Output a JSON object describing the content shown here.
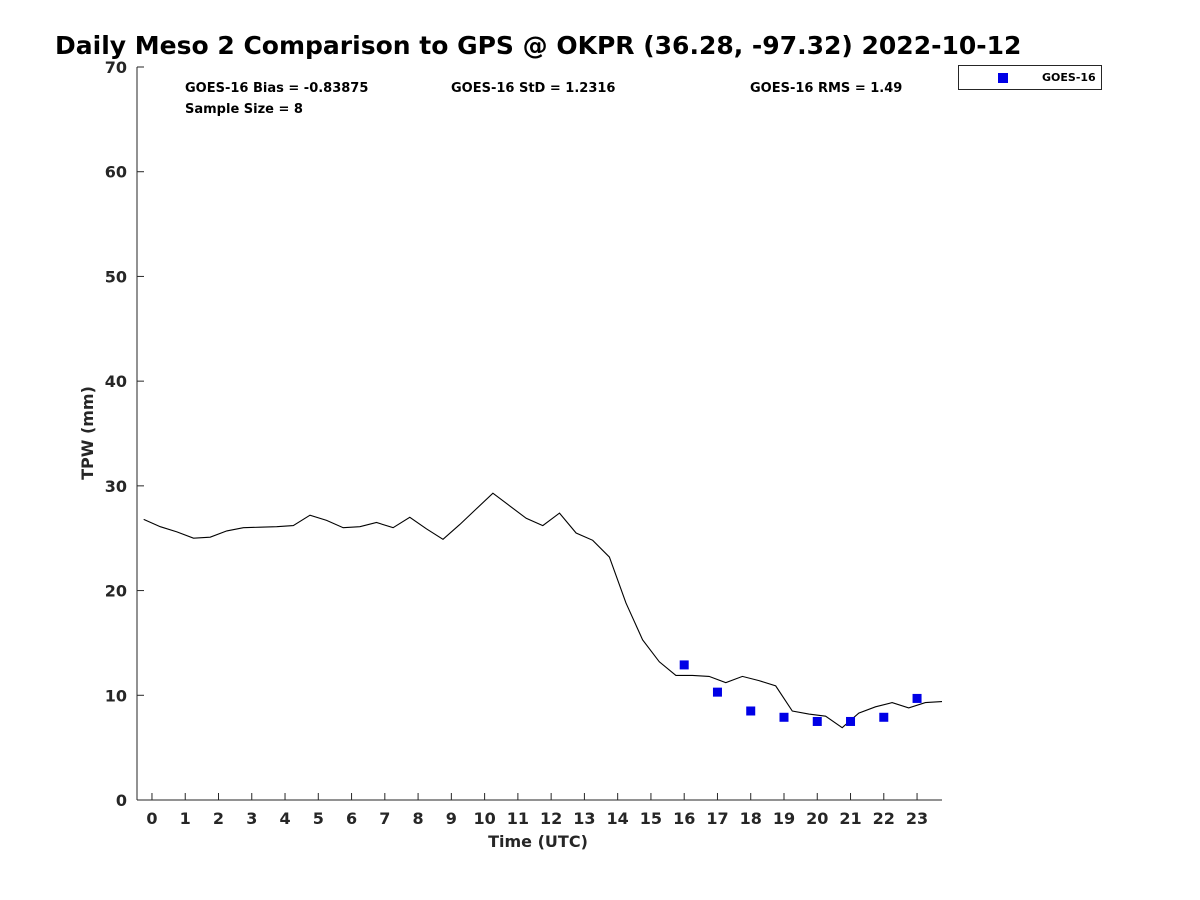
{
  "chart_data": {
    "type": "line",
    "title": "Daily Meso 2 Comparison to GPS @ OKPR (36.28, -97.32) 2022-10-12",
    "xlabel": "Time (UTC)",
    "ylabel": "TPW (mm)",
    "xlim": [
      -0.45,
      23.75
    ],
    "ylim": [
      0,
      70
    ],
    "x_ticks": [
      0,
      1,
      2,
      3,
      4,
      5,
      6,
      7,
      8,
      9,
      10,
      11,
      12,
      13,
      14,
      15,
      16,
      17,
      18,
      19,
      20,
      21,
      22,
      23
    ],
    "x_tick_labels": [
      "0",
      "1",
      "2",
      "3",
      "4",
      "5",
      "6",
      "7",
      "8",
      "9",
      "10",
      "11",
      "12",
      "13",
      "14",
      "15",
      "16",
      "17",
      "18",
      "19",
      "20",
      "21",
      "22",
      "23"
    ],
    "y_ticks": [
      0,
      10,
      20,
      30,
      40,
      50,
      60,
      70
    ],
    "y_tick_labels": [
      "0",
      "10",
      "20",
      "30",
      "40",
      "50",
      "60",
      "70"
    ],
    "grid": false,
    "legend": {
      "position": "outside-top-right",
      "entries": [
        {
          "label": "GOES-16",
          "color": "#0000e6",
          "marker": "square"
        }
      ]
    },
    "stats": {
      "bias": "GOES-16 Bias = -0.83875",
      "std": "GOES-16 StD = 1.2316",
      "rms": "GOES-16 RMS = 1.49",
      "sample_size": "Sample Size = 8"
    },
    "gps_line": {
      "color": "#000000",
      "x": [
        -0.25,
        0.25,
        0.75,
        1.25,
        1.75,
        2.25,
        2.75,
        3.25,
        3.75,
        4.25,
        4.75,
        5.25,
        5.75,
        6.25,
        6.75,
        7.25,
        7.75,
        8.25,
        8.75,
        9.25,
        9.75,
        10.25,
        10.75,
        11.25,
        11.75,
        12.25,
        12.75,
        13.25,
        13.75,
        14.25,
        14.75,
        15.25,
        15.75,
        16.25,
        16.75,
        17.25,
        17.75,
        18.25,
        18.75,
        19.25,
        19.75,
        20.25,
        20.75,
        21.25,
        21.75,
        22.25,
        22.75,
        23.25,
        23.75
      ],
      "y": [
        26.8,
        26.1,
        25.6,
        25.0,
        25.1,
        25.7,
        26.0,
        26.05,
        26.1,
        26.2,
        27.2,
        26.7,
        26.0,
        26.1,
        26.5,
        26.0,
        27.0,
        25.9,
        24.9,
        26.3,
        27.8,
        29.3,
        28.1,
        26.9,
        26.2,
        27.4,
        25.5,
        24.8,
        23.2,
        18.8,
        15.3,
        13.2,
        11.9,
        11.9,
        11.8,
        11.2,
        11.8,
        11.4,
        10.9,
        8.5,
        8.2,
        8.0,
        6.9,
        8.3,
        8.9,
        9.3,
        8.8,
        9.3,
        9.4
      ]
    },
    "series": [
      {
        "name": "GOES-16",
        "color": "#0000e6",
        "marker": "square",
        "x": [
          16,
          17,
          18,
          19,
          20,
          21,
          22,
          23
        ],
        "y": [
          12.9,
          10.3,
          8.5,
          7.9,
          7.5,
          7.5,
          7.9,
          9.7
        ]
      }
    ]
  }
}
